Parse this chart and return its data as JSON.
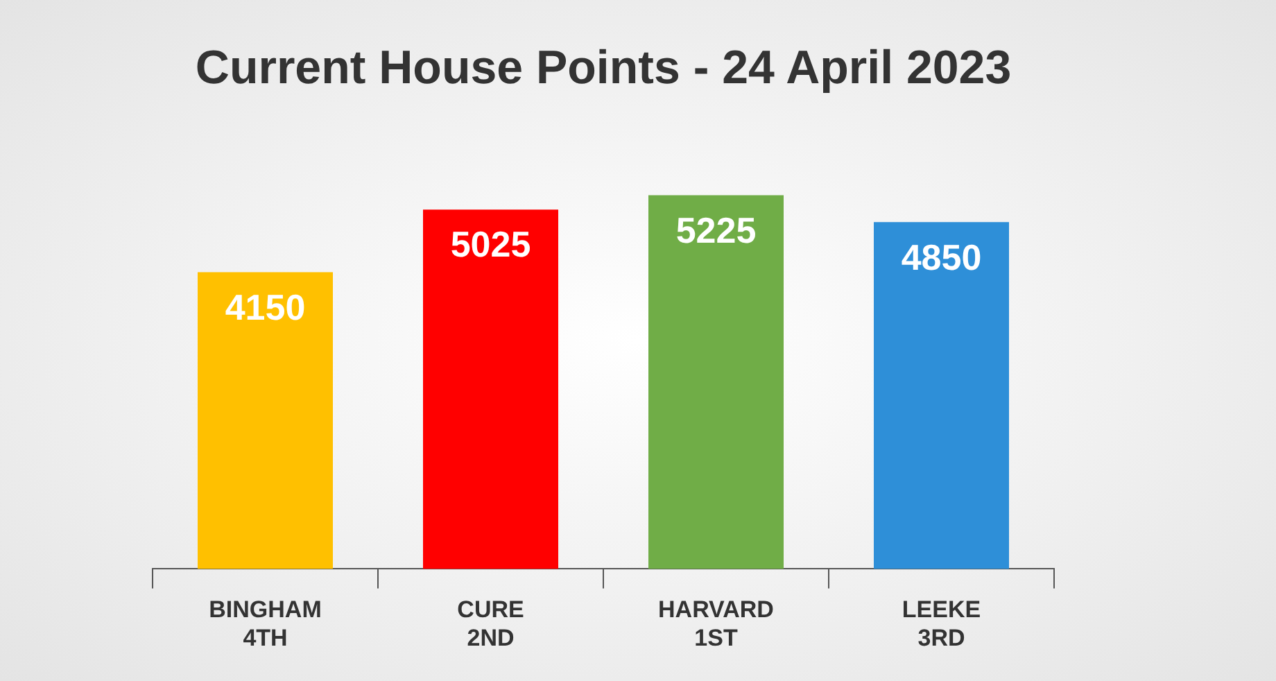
{
  "chart_data": {
    "type": "bar",
    "title": "Current House Points - 24 April 2023",
    "categories": [
      "BINGHAM\n4TH",
      "CURE\n2ND",
      "HARVARD\n1ST",
      "LEEKE\n3RD"
    ],
    "values": [
      4150,
      5025,
      5225,
      4850
    ],
    "colors": [
      "#ffc000",
      "#ff0000",
      "#70ad47",
      "#2e8fd8"
    ],
    "data_labels": true
  }
}
